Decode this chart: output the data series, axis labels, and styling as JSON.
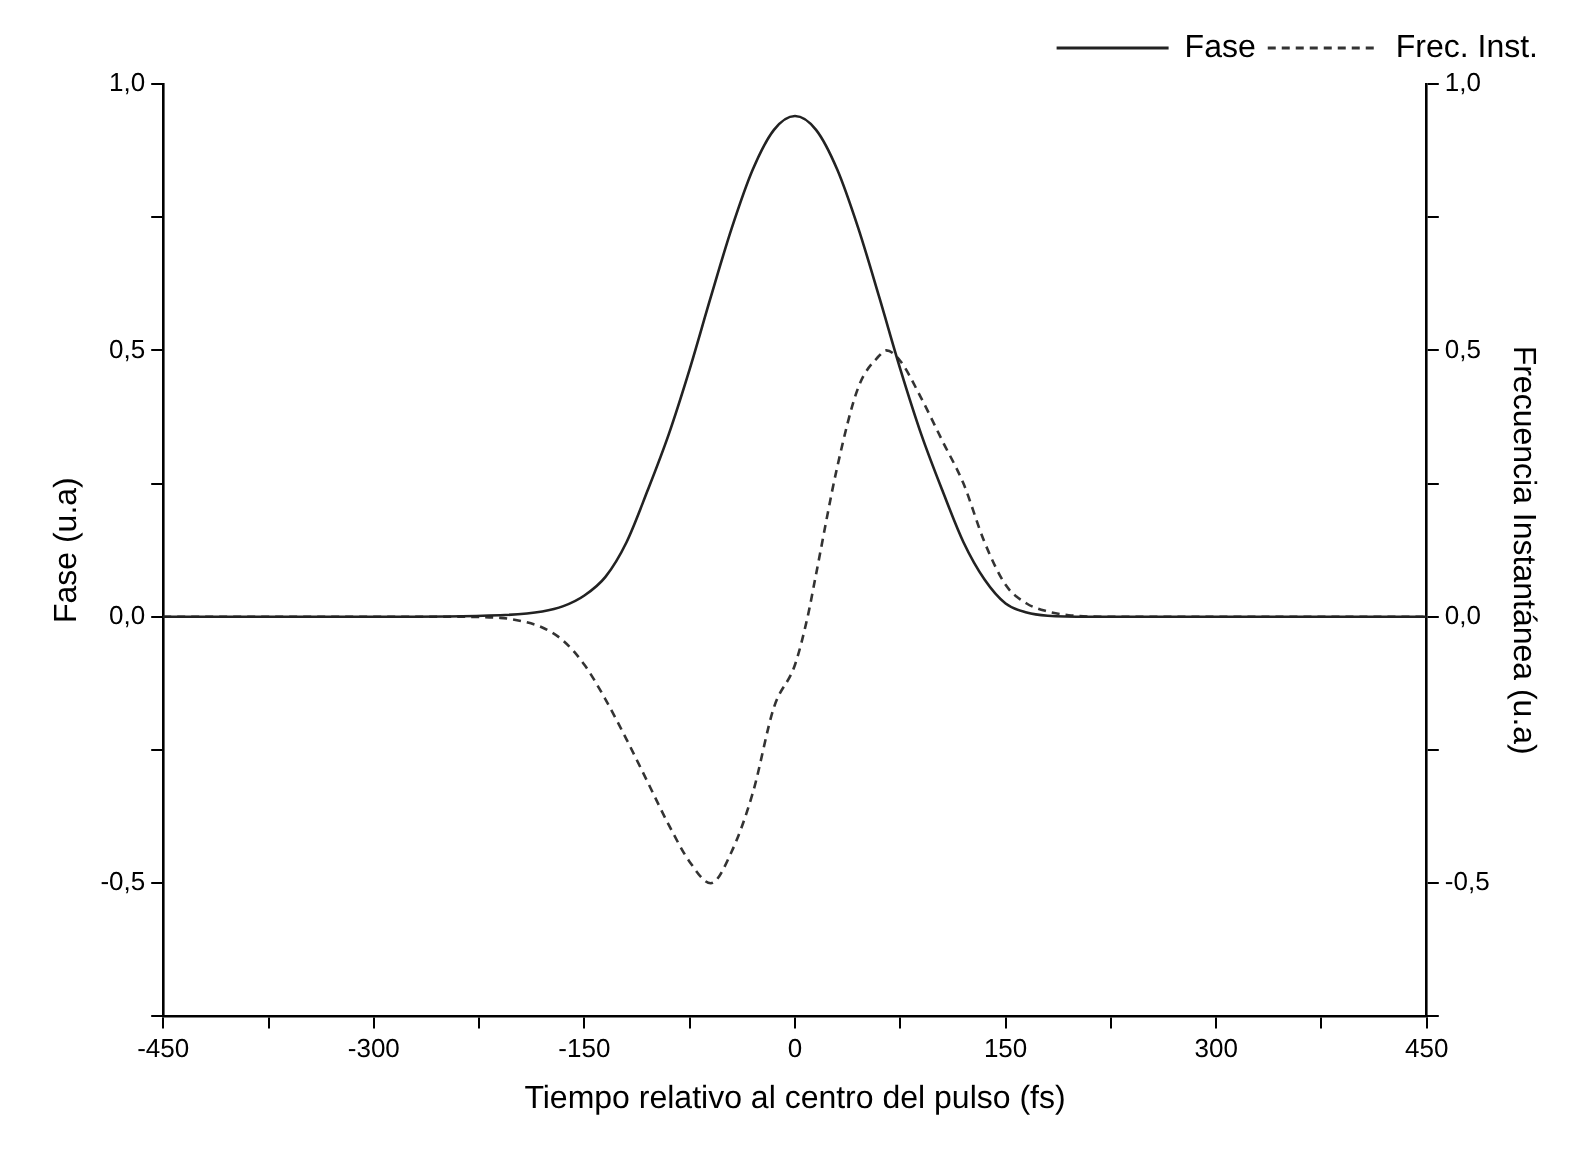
{
  "chart_data": {
    "type": "line",
    "xlabel": "Tiempo relativo al centro del pulso (fs)",
    "ylabel": "Fase (u.a)",
    "y2label": "Frecuencia Instantánea (u.a)",
    "legend": "top right",
    "grid": false,
    "marker": "none",
    "xlim": [
      -450,
      450
    ],
    "xticks": [
      {
        "value": -450,
        "label": "-450"
      },
      {
        "value": -375,
        "label": null
      },
      {
        "value": -300,
        "label": "-300"
      },
      {
        "value": -225,
        "label": null
      },
      {
        "value": -150,
        "label": "-150"
      },
      {
        "value": -75,
        "label": null
      },
      {
        "value": 0,
        "label": "0"
      },
      {
        "value": 75,
        "label": null
      },
      {
        "value": 150,
        "label": "150"
      },
      {
        "value": 225,
        "label": null
      },
      {
        "value": 300,
        "label": "300"
      },
      {
        "value": 375,
        "label": null
      },
      {
        "value": 450,
        "label": "450"
      }
    ],
    "ylim": [
      -0.75,
      1.0
    ],
    "yticks": [
      {
        "value": -0.75,
        "label": null
      },
      {
        "value": -0.5,
        "label": "-0,5"
      },
      {
        "value": -0.25,
        "label": null
      },
      {
        "value": 0,
        "label": "0,0"
      },
      {
        "value": 0.25,
        "label": null
      },
      {
        "value": 0.5,
        "label": "0,5"
      },
      {
        "value": 0.75,
        "label": null
      },
      {
        "value": 1.0,
        "label": "1,0"
      }
    ],
    "y2lim": [
      -0.75,
      1.0
    ],
    "y2ticks": [
      {
        "value": -0.75,
        "label": null
      },
      {
        "value": -0.5,
        "label": "-0,5"
      },
      {
        "value": -0.25,
        "label": null
      },
      {
        "value": 0,
        "label": "0,0"
      },
      {
        "value": 0.25,
        "label": null
      },
      {
        "value": 0.5,
        "label": "0,5"
      },
      {
        "value": 0.75,
        "label": null
      },
      {
        "value": 1.0,
        "label": "1,0"
      }
    ],
    "series": [
      {
        "name": "Fase",
        "color": "#222222",
        "line_style": "solid",
        "x": [
          -450,
          -300,
          -210,
          -180,
          -165,
          -150,
          -135,
          -120,
          -105,
          -90,
          -75,
          -60,
          -45,
          -30,
          -15,
          0,
          15,
          30,
          45,
          60,
          75,
          90,
          105,
          120,
          135,
          150,
          165,
          180,
          210,
          300,
          450
        ],
        "values": [
          0,
          0,
          0.003,
          0.01,
          0.02,
          0.04,
          0.075,
          0.14,
          0.237,
          0.342,
          0.465,
          0.6,
          0.73,
          0.84,
          0.914,
          0.94,
          0.914,
          0.84,
          0.73,
          0.6,
          0.465,
          0.342,
          0.237,
          0.14,
          0.07,
          0.025,
          0.008,
          0.002,
          0,
          0,
          0
        ]
      },
      {
        "name": "Frec. Inst.",
        "color": "#333333",
        "line_style": "dashed",
        "axis": "y2",
        "x": [
          -450,
          -300,
          -240,
          -210,
          -195,
          -180,
          -165,
          -150,
          -135,
          -120,
          -105,
          -90,
          -75,
          -60,
          -45,
          -30,
          -15,
          0,
          9,
          15,
          30,
          45,
          60,
          65,
          75,
          90,
          105,
          120,
          135,
          150,
          165,
          180,
          195,
          225,
          300,
          450
        ],
        "values": [
          0,
          0,
          0,
          -0.002,
          -0.008,
          -0.02,
          -0.045,
          -0.09,
          -0.155,
          -0.23,
          -0.31,
          -0.39,
          -0.46,
          -0.5,
          -0.44,
          -0.33,
          -0.17,
          -0.09,
          0,
          0.08,
          0.28,
          0.43,
          0.49,
          0.5,
          0.48,
          0.41,
          0.33,
          0.25,
          0.14,
          0.06,
          0.025,
          0.01,
          0.003,
          0,
          0,
          0
        ]
      }
    ]
  }
}
